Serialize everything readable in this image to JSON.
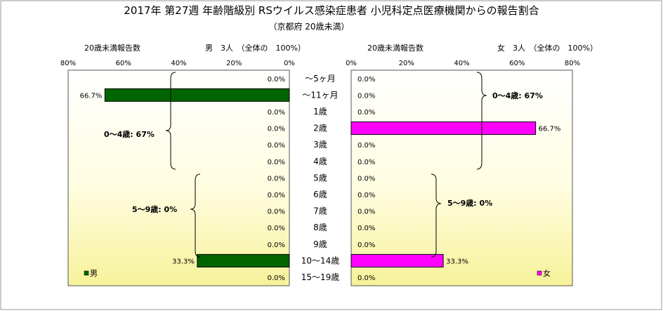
{
  "chart_data": {
    "type": "bar",
    "title": "2017年 第27週 年齢階級別 RSウイルス感染症患者 小児科定点医療機関からの報告割合",
    "subtitle": "（京都府 20歳未満）",
    "categories": [
      "～5ヶ月",
      "～11ヶ月",
      "1歳",
      "2歳",
      "3歳",
      "4歳",
      "5歳",
      "6歳",
      "7歳",
      "8歳",
      "9歳",
      "10～14歳",
      "15～19歳"
    ],
    "xlim": [
      0,
      80
    ],
    "ticks": [
      "80%",
      "60%",
      "40%",
      "20%",
      "0%"
    ],
    "ticks_right": [
      "0%",
      "20%",
      "40%",
      "60%",
      "80%"
    ],
    "left_panel": {
      "header_left": "20歳未満報告数",
      "header_right": "男　3人　（全体の　100%）",
      "legend": "男",
      "color": "#006400",
      "values": [
        0.0,
        66.7,
        0.0,
        0.0,
        0.0,
        0.0,
        0.0,
        0.0,
        0.0,
        0.0,
        0.0,
        33.3,
        0.0
      ],
      "labels": [
        "0.0%",
        "66.7%",
        "0.0%",
        "0.0%",
        "0.0%",
        "0.0%",
        "0.0%",
        "0.0%",
        "0.0%",
        "0.0%",
        "0.0%",
        "33.3%",
        "0.0%"
      ],
      "groups": [
        "0～4歳: 67%",
        "5～9歳: 0%"
      ]
    },
    "right_panel": {
      "header_left": "20歳未満報告数",
      "header_right": "女　3人　（全体の　100%）",
      "legend": "女",
      "color": "#ff00ff",
      "values": [
        0.0,
        0.0,
        0.0,
        66.7,
        0.0,
        0.0,
        0.0,
        0.0,
        0.0,
        0.0,
        0.0,
        33.3,
        0.0
      ],
      "labels": [
        "0.0%",
        "0.0%",
        "0.0%",
        "66.7%",
        "0.0%",
        "0.0%",
        "0.0%",
        "0.0%",
        "0.0%",
        "0.0%",
        "0.0%",
        "33.3%",
        "0.0%"
      ],
      "groups": [
        "0～4歳: 67%",
        "5～9歳: 0%"
      ]
    }
  }
}
